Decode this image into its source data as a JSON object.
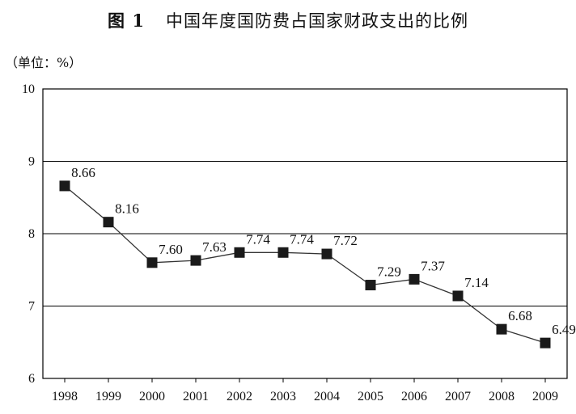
{
  "title": {
    "figure_label": "图 1",
    "text": "中国年度国防费占国家财政支出的比例"
  },
  "unit_label": "（单位：%）",
  "chart_data": {
    "type": "line",
    "title": "中国年度国防费占国家财政支出的比例",
    "xlabel": "",
    "ylabel": "",
    "unit": "%",
    "categories": [
      "1998",
      "1999",
      "2000",
      "2001",
      "2002",
      "2003",
      "2004",
      "2005",
      "2006",
      "2007",
      "2008",
      "2009"
    ],
    "values": [
      8.66,
      8.16,
      7.6,
      7.63,
      7.74,
      7.74,
      7.72,
      7.29,
      7.37,
      7.14,
      6.68,
      6.49
    ],
    "value_labels": [
      "8.66",
      "8.16",
      "7.60",
      "7.63",
      "7.74",
      "7.74",
      "7.72",
      "7.29",
      "7.37",
      "7.14",
      "6.68",
      "6.49"
    ],
    "ylim": [
      6,
      10
    ],
    "yticks": [
      "6",
      "7",
      "8",
      "9",
      "10"
    ],
    "grid": "horizontal",
    "marker": "square",
    "colors": {
      "line": "#333333",
      "marker": "#1a1a1a",
      "grid": "#000000"
    }
  }
}
